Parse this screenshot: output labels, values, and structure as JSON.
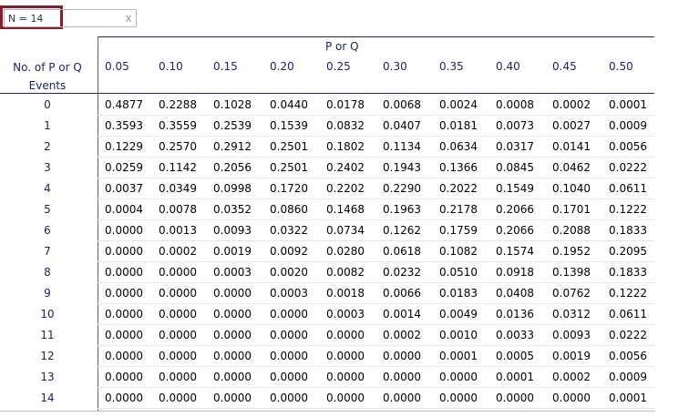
{
  "n_input": {
    "value": "N = 14",
    "clear_label": "x"
  },
  "table": {
    "group_header": "P or Q",
    "row_header": "No. of P or Q Events",
    "columns": [
      "0.05",
      "0.10",
      "0.15",
      "0.20",
      "0.25",
      "0.30",
      "0.35",
      "0.40",
      "0.45",
      "0.50"
    ],
    "rows": [
      {
        "label": "0",
        "values": [
          "0.4877",
          "0.2288",
          "0.1028",
          "0.0440",
          "0.0178",
          "0.0068",
          "0.0024",
          "0.0008",
          "0.0002",
          "0.0001"
        ]
      },
      {
        "label": "1",
        "values": [
          "0.3593",
          "0.3559",
          "0.2539",
          "0.1539",
          "0.0832",
          "0.0407",
          "0.0181",
          "0.0073",
          "0.0027",
          "0.0009"
        ]
      },
      {
        "label": "2",
        "values": [
          "0.1229",
          "0.2570",
          "0.2912",
          "0.2501",
          "0.1802",
          "0.1134",
          "0.0634",
          "0.0317",
          "0.0141",
          "0.0056"
        ]
      },
      {
        "label": "3",
        "values": [
          "0.0259",
          "0.1142",
          "0.2056",
          "0.2501",
          "0.2402",
          "0.1943",
          "0.1366",
          "0.0845",
          "0.0462",
          "0.0222"
        ]
      },
      {
        "label": "4",
        "values": [
          "0.0037",
          "0.0349",
          "0.0998",
          "0.1720",
          "0.2202",
          "0.2290",
          "0.2022",
          "0.1549",
          "0.1040",
          "0.0611"
        ]
      },
      {
        "label": "5",
        "values": [
          "0.0004",
          "0.0078",
          "0.0352",
          "0.0860",
          "0.1468",
          "0.1963",
          "0.2178",
          "0.2066",
          "0.1701",
          "0.1222"
        ]
      },
      {
        "label": "6",
        "values": [
          "0.0000",
          "0.0013",
          "0.0093",
          "0.0322",
          "0.0734",
          "0.1262",
          "0.1759",
          "0.2066",
          "0.2088",
          "0.1833"
        ]
      },
      {
        "label": "7",
        "values": [
          "0.0000",
          "0.0002",
          "0.0019",
          "0.0092",
          "0.0280",
          "0.0618",
          "0.1082",
          "0.1574",
          "0.1952",
          "0.2095"
        ]
      },
      {
        "label": "8",
        "values": [
          "0.0000",
          "0.0000",
          "0.0003",
          "0.0020",
          "0.0082",
          "0.0232",
          "0.0510",
          "0.0918",
          "0.1398",
          "0.1833"
        ]
      },
      {
        "label": "9",
        "values": [
          "0.0000",
          "0.0000",
          "0.0000",
          "0.0003",
          "0.0018",
          "0.0066",
          "0.0183",
          "0.0408",
          "0.0762",
          "0.1222"
        ]
      },
      {
        "label": "10",
        "values": [
          "0.0000",
          "0.0000",
          "0.0000",
          "0.0000",
          "0.0003",
          "0.0014",
          "0.0049",
          "0.0136",
          "0.0312",
          "0.0611"
        ]
      },
      {
        "label": "11",
        "values": [
          "0.0000",
          "0.0000",
          "0.0000",
          "0.0000",
          "0.0000",
          "0.0002",
          "0.0010",
          "0.0033",
          "0.0093",
          "0.0222"
        ]
      },
      {
        "label": "12",
        "values": [
          "0.0000",
          "0.0000",
          "0.0000",
          "0.0000",
          "0.0000",
          "0.0000",
          "0.0001",
          "0.0005",
          "0.0019",
          "0.0056"
        ]
      },
      {
        "label": "13",
        "values": [
          "0.0000",
          "0.0000",
          "0.0000",
          "0.0000",
          "0.0000",
          "0.0000",
          "0.0000",
          "0.0001",
          "0.0002",
          "0.0009"
        ]
      },
      {
        "label": "14",
        "values": [
          "0.0000",
          "0.0000",
          "0.0000",
          "0.0000",
          "0.0000",
          "0.0000",
          "0.0000",
          "0.0000",
          "0.0000",
          "0.0001"
        ]
      }
    ]
  },
  "colors": {
    "header_text": "#1b2470",
    "highlight_border": "#8b1a2b"
  }
}
